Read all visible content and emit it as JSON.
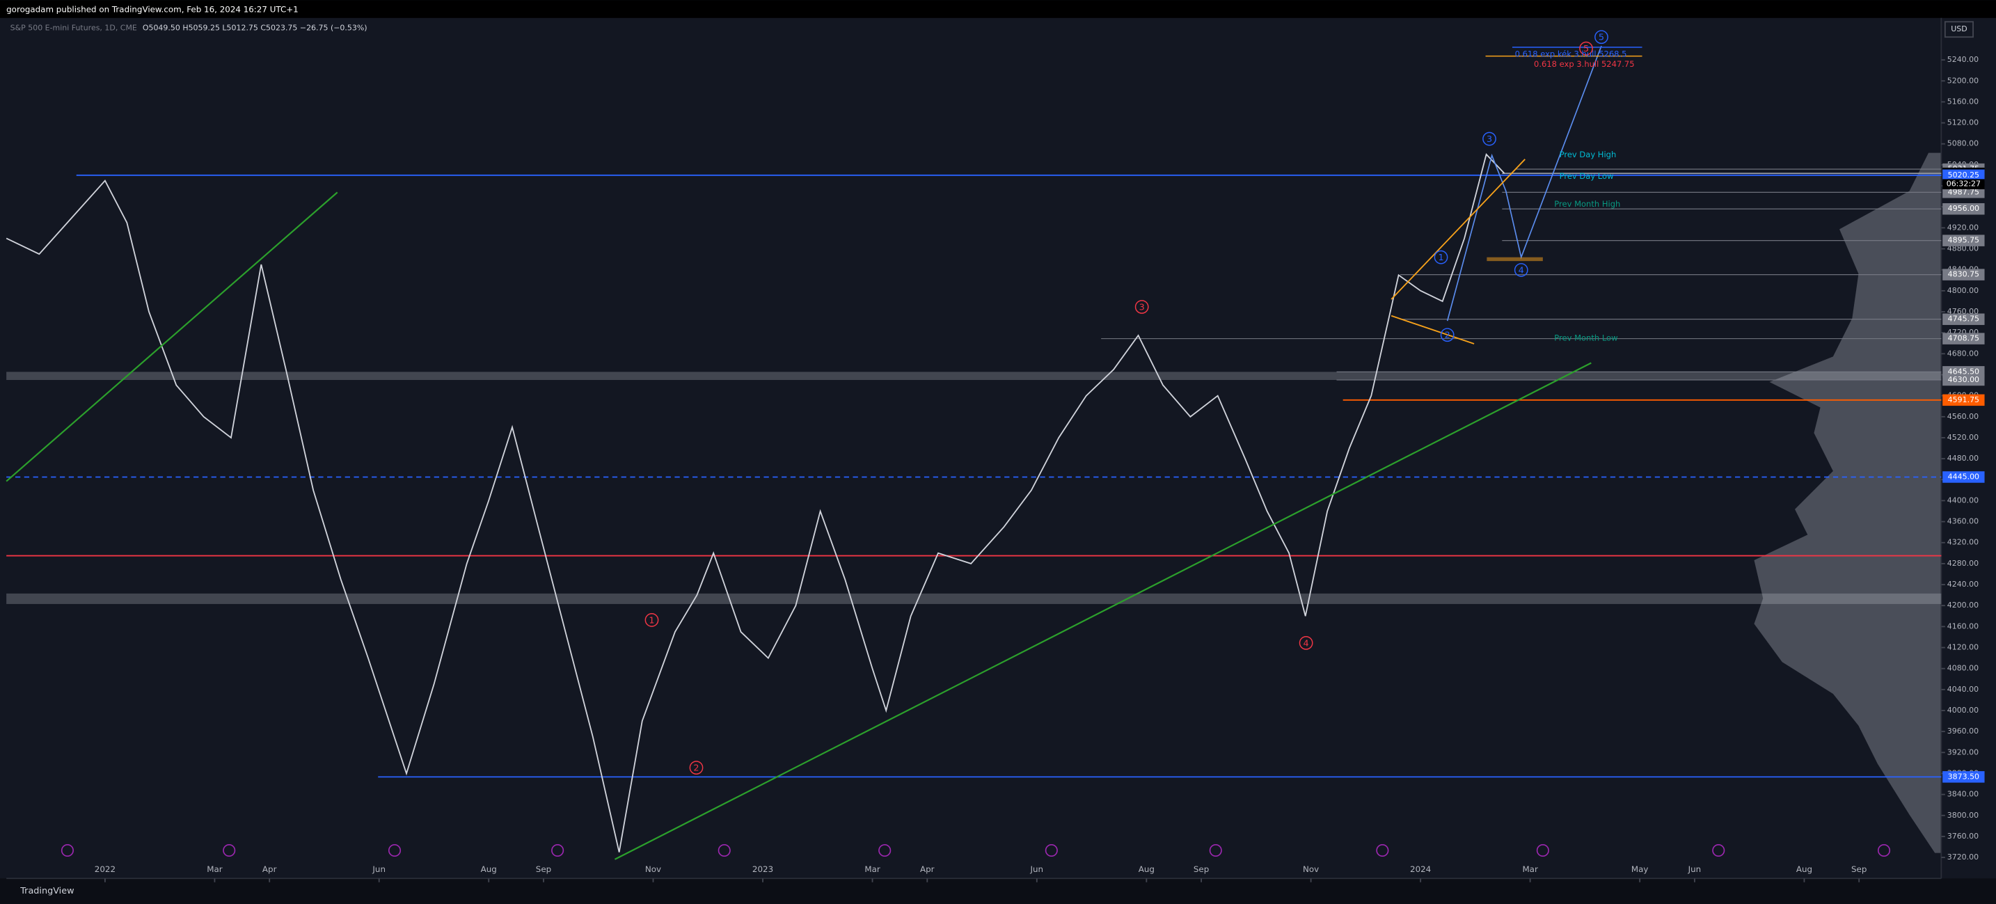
{
  "header": {
    "published": "gorogadam published on TradingView.com, Feb 16, 2024 16:27 UTC+1",
    "symbol": "S&P 500 E-mini Futures, 1D, CME",
    "legend": "O5049.50 H5059.25 L5012.75 C5023.75 −26.75 (−0.53%)"
  },
  "footer": "TradingView",
  "currency": "USD",
  "chart_data": {
    "type": "line",
    "color": "#d1d4dc",
    "x": [
      -1.8,
      -1.2,
      -0.6,
      0.0,
      0.4,
      0.8,
      1.3,
      1.8,
      2.3,
      2.85,
      3.3,
      3.8,
      4.3,
      4.8,
      5.5,
      6.0,
      6.6,
      7.0,
      7.43,
      7.9,
      8.4,
      8.9,
      9.38,
      9.8,
      10.4,
      10.8,
      11.1,
      11.6,
      12.1,
      12.6,
      13.05,
      13.5,
      14.0,
      14.25,
      14.7,
      15.2,
      15.8,
      16.4,
      16.9,
      17.4,
      17.9,
      18.4,
      18.85,
      19.3,
      19.8,
      20.3,
      20.8,
      21.2,
      21.6,
      21.9,
      22.3,
      22.7,
      23.1,
      23.6,
      24.0,
      24.4,
      24.8,
      25.2,
      25.53
    ],
    "values": [
      4900,
      4870,
      4940,
      5010,
      4930,
      4760,
      4620,
      4560,
      4520,
      4850,
      4650,
      4420,
      4250,
      4100,
      3880,
      4050,
      4280,
      4400,
      4540,
      4350,
      4150,
      3950,
      3730,
      3980,
      4150,
      4220,
      4300,
      4150,
      4100,
      4200,
      4380,
      4250,
      4080,
      4000,
      4180,
      4300,
      4280,
      4350,
      4420,
      4520,
      4600,
      4650,
      4715,
      4620,
      4560,
      4600,
      4480,
      4380,
      4300,
      4180,
      4380,
      4500,
      4600,
      4830,
      4800,
      4780,
      4900,
      5060,
      5023.75
    ],
    "xlim": [
      -1.8,
      33.5
    ],
    "ylim": [
      3680,
      5320
    ],
    "xticks": [
      {
        "value": 0,
        "label": "2022"
      },
      {
        "value": 2,
        "label": "Mar"
      },
      {
        "value": 3,
        "label": "Apr"
      },
      {
        "value": 5,
        "label": "Jun"
      },
      {
        "value": 7,
        "label": "Aug"
      },
      {
        "value": 8,
        "label": "Sep"
      },
      {
        "value": 10,
        "label": "Nov"
      },
      {
        "value": 12,
        "label": "2023"
      },
      {
        "value": 14,
        "label": "Mar"
      },
      {
        "value": 15,
        "label": "Apr"
      },
      {
        "value": 17,
        "label": "Jun"
      },
      {
        "value": 19,
        "label": "Aug"
      },
      {
        "value": 20,
        "label": "Sep"
      },
      {
        "value": 22,
        "label": "Nov"
      },
      {
        "value": 24,
        "label": "2024"
      },
      {
        "value": 26,
        "label": "Mar"
      },
      {
        "value": 28,
        "label": "May"
      },
      {
        "value": 29,
        "label": "Jun"
      },
      {
        "value": 31,
        "label": "Aug"
      },
      {
        "value": 32,
        "label": "Sep"
      }
    ],
    "yticks": [
      {
        "value": 3720,
        "label": "3720.00"
      },
      {
        "value": 3760,
        "label": "3760.00"
      },
      {
        "value": 3800,
        "label": "3800.00"
      },
      {
        "value": 3840,
        "label": "3840.00"
      },
      {
        "value": 3880,
        "label": "3880.00"
      },
      {
        "value": 3920,
        "label": "3920.00"
      },
      {
        "value": 3960,
        "label": "3960.00"
      },
      {
        "value": 4000,
        "label": "4000.00"
      },
      {
        "value": 4040,
        "label": "4040.00"
      },
      {
        "value": 4080,
        "label": "4080.00"
      },
      {
        "value": 4120,
        "label": "4120.00"
      },
      {
        "value": 4160,
        "label": "4160.00"
      },
      {
        "value": 4200,
        "label": "4200.00"
      },
      {
        "value": 4240,
        "label": "4240.00"
      },
      {
        "value": 4280,
        "label": "4280.00"
      },
      {
        "value": 4320,
        "label": "4320.00"
      },
      {
        "value": 4360,
        "label": "4360.00"
      },
      {
        "value": 4400,
        "label": "4400.00"
      },
      {
        "value": 4440,
        "label": "4440.00"
      },
      {
        "value": 4480,
        "label": "4480.00"
      },
      {
        "value": 4520,
        "label": "4520.00"
      },
      {
        "value": 4560,
        "label": "4560.00"
      },
      {
        "value": 4600,
        "label": "4600.00"
      },
      {
        "value": 4640,
        "label": "4640.00"
      },
      {
        "value": 4680,
        "label": "4680.00"
      },
      {
        "value": 4720,
        "label": "4720.00"
      },
      {
        "value": 4760,
        "label": "4760.00"
      },
      {
        "value": 4800,
        "label": "4800.00"
      },
      {
        "value": 4840,
        "label": "4840.00"
      },
      {
        "value": 4880,
        "label": "4880.00"
      },
      {
        "value": 4920,
        "label": "4920.00"
      },
      {
        "value": 4960,
        "label": "4960.00"
      },
      {
        "value": 5000,
        "label": "5000.00"
      },
      {
        "value": 5040,
        "label": "5040.00"
      },
      {
        "value": 5080,
        "label": "5080.00"
      },
      {
        "value": 5120,
        "label": "5120.00"
      },
      {
        "value": 5160,
        "label": "5160.00"
      },
      {
        "value": 5200,
        "label": "5200.00"
      },
      {
        "value": 5240,
        "label": "5240.00"
      }
    ],
    "levels": [
      {
        "value": 5031.75,
        "label": "5031.75",
        "color": "#787b86"
      },
      {
        "value": 5023.75,
        "label": "5023.75",
        "color": "#000000"
      },
      {
        "value": 5020.25,
        "label": "5020.25",
        "color": "#2962ff"
      },
      {
        "value": 4987.75,
        "label": "4987.75",
        "color": "#787b86"
      },
      {
        "value": 4956.0,
        "label": "4956.00",
        "color": "#787b86"
      },
      {
        "value": 4895.75,
        "label": "4895.75",
        "color": "#787b86"
      },
      {
        "value": 4830.75,
        "label": "4830.75",
        "color": "#787b86"
      },
      {
        "value": 4745.75,
        "label": "4745.75",
        "color": "#787b86"
      },
      {
        "value": 4708.75,
        "label": "4708.75",
        "color": "#787b86"
      },
      {
        "value": 4645.5,
        "label": "4645.50",
        "color": "#787b86"
      },
      {
        "value": 4630.0,
        "label": "4630.00",
        "color": "#787b86"
      },
      {
        "value": 4591.75,
        "label": "4591.75",
        "color": "#ff5d00"
      },
      {
        "value": 4445.0,
        "label": "4445.00",
        "color": "#2962ff",
        "style": "dashed"
      },
      {
        "value": 3873.5,
        "label": "3873.50",
        "color": "#2962ff"
      },
      {
        "value": 4295,
        "color": "#f23645"
      }
    ],
    "bands": [
      {
        "from": 4203,
        "to": 4223,
        "color": "#d1d4dc"
      },
      {
        "from": 4630,
        "to": 4645.5,
        "color": "#d1d4dc"
      }
    ],
    "countdown": "06:32:27",
    "annotations": [
      {
        "text": "1",
        "color": "#f23645"
      },
      {
        "text": "2",
        "color": "#f23645"
      },
      {
        "text": "3",
        "color": "#f23645"
      },
      {
        "text": "4",
        "color": "#f23645"
      },
      {
        "text": "5",
        "color": "#f23645"
      },
      {
        "text": "1",
        "color": "#2962ff"
      },
      {
        "text": "2",
        "color": "#2962ff"
      },
      {
        "text": "3",
        "color": "#2962ff"
      },
      {
        "text": "4",
        "color": "#2962ff"
      },
      {
        "text": "5",
        "color": "#2962ff"
      },
      {
        "text": "0.618 exp kék 3.hull 5268.5",
        "color": "#2962ff"
      },
      {
        "text": "0.618 exp 3.hull 5247.75",
        "color": "#f23645"
      },
      {
        "text": "Prev Day High",
        "color": "#00bcd4"
      },
      {
        "text": "Prev Day Low",
        "color": "#00bcd4"
      },
      {
        "text": "Prev Month High",
        "color": "#089981"
      },
      {
        "text": "Prev Month Low",
        "color": "#089981"
      }
    ]
  }
}
